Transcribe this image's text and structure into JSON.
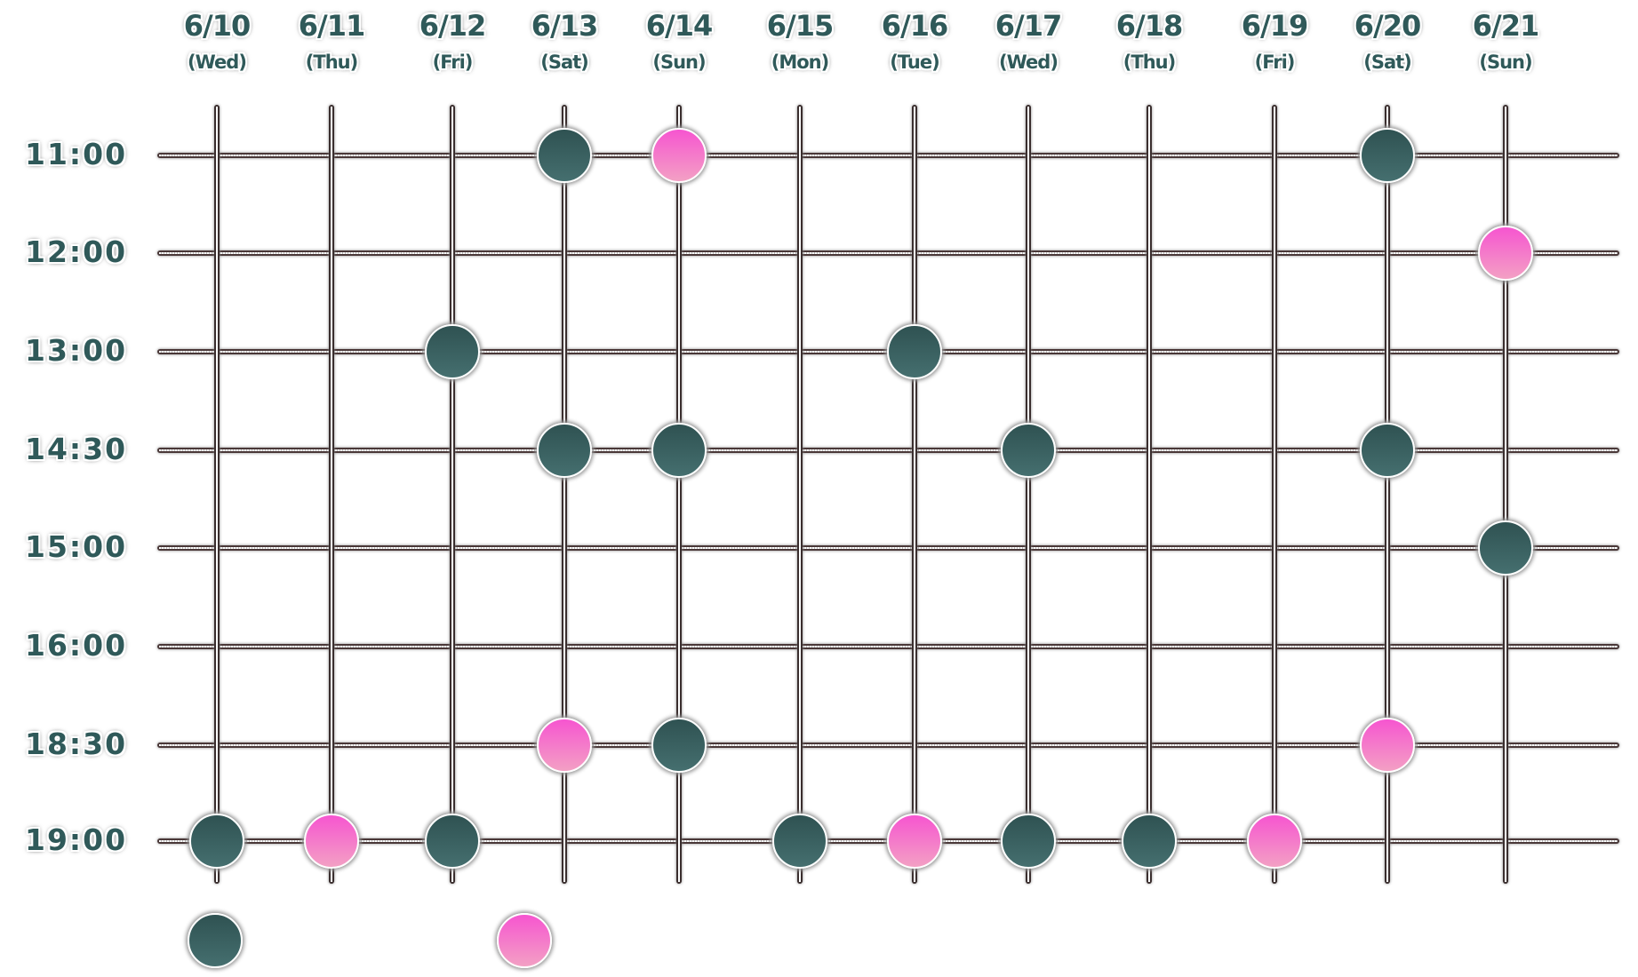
{
  "colors": {
    "available": "#2f5252",
    "partial": "#f655d0",
    "text": "#2f5959",
    "grid": "#4a3838"
  },
  "columns": [
    {
      "date": "6/10",
      "dow": "(Wed)"
    },
    {
      "date": "6/11",
      "dow": "(Thu)"
    },
    {
      "date": "6/12",
      "dow": "(Fri)"
    },
    {
      "date": "6/13",
      "dow": "(Sat)"
    },
    {
      "date": "6/14",
      "dow": "(Sun)"
    },
    {
      "date": "6/15",
      "dow": "(Mon)"
    },
    {
      "date": "6/16",
      "dow": "(Tue)"
    },
    {
      "date": "6/17",
      "dow": "(Wed)"
    },
    {
      "date": "6/18",
      "dow": "(Thu)"
    },
    {
      "date": "6/19",
      "dow": "(Fri)"
    },
    {
      "date": "6/20",
      "dow": "(Sat)"
    },
    {
      "date": "6/21",
      "dow": "(Sun)"
    }
  ],
  "rows": [
    "11:00",
    "12:00",
    "13:00",
    "14:30",
    "15:00",
    "16:00",
    "18:30",
    "19:00"
  ],
  "slots": [
    {
      "date": "6/13",
      "time": "11:00",
      "status": "dark"
    },
    {
      "date": "6/14",
      "time": "11:00",
      "status": "pink"
    },
    {
      "date": "6/20",
      "time": "11:00",
      "status": "dark"
    },
    {
      "date": "6/21",
      "time": "12:00",
      "status": "pink"
    },
    {
      "date": "6/12",
      "time": "13:00",
      "status": "dark"
    },
    {
      "date": "6/16",
      "time": "13:00",
      "status": "dark"
    },
    {
      "date": "6/13",
      "time": "14:30",
      "status": "dark"
    },
    {
      "date": "6/14",
      "time": "14:30",
      "status": "dark"
    },
    {
      "date": "6/17",
      "time": "14:30",
      "status": "dark"
    },
    {
      "date": "6/20",
      "time": "14:30",
      "status": "dark"
    },
    {
      "date": "6/21",
      "time": "15:00",
      "status": "dark"
    },
    {
      "date": "6/13",
      "time": "18:30",
      "status": "pink"
    },
    {
      "date": "6/14",
      "time": "18:30",
      "status": "dark"
    },
    {
      "date": "6/20",
      "time": "18:30",
      "status": "pink"
    },
    {
      "date": "6/10",
      "time": "19:00",
      "status": "dark"
    },
    {
      "date": "6/11",
      "time": "19:00",
      "status": "pink"
    },
    {
      "date": "6/12",
      "time": "19:00",
      "status": "dark"
    },
    {
      "date": "6/15",
      "time": "19:00",
      "status": "dark"
    },
    {
      "date": "6/16",
      "time": "19:00",
      "status": "pink"
    },
    {
      "date": "6/17",
      "time": "19:00",
      "status": "dark"
    },
    {
      "date": "6/18",
      "time": "19:00",
      "status": "dark"
    },
    {
      "date": "6/19",
      "time": "19:00",
      "status": "pink"
    }
  ],
  "legend": [
    {
      "status": "dark"
    },
    {
      "status": "pink"
    }
  ]
}
